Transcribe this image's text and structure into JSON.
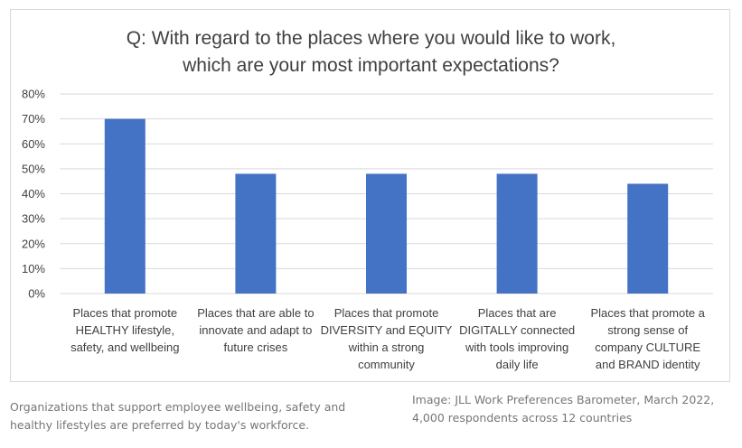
{
  "chart_data": {
    "type": "bar",
    "title_lines": [
      "Q: With regard to the places where you would like to work,",
      "which are your most important expectations?"
    ],
    "categories": [
      [
        "Places that promote",
        "HEALTHY lifestyle,",
        "safety, and wellbeing"
      ],
      [
        "Places that are able to",
        "innovate and adapt to",
        "future crises"
      ],
      [
        "Places that promote",
        "DIVERSITY and EQUITY",
        "within a strong",
        "community"
      ],
      [
        "Places that are",
        "DIGITALLY connected",
        "with tools improving",
        "daily life"
      ],
      [
        "Places that promote a",
        "strong sense of",
        "company CULTURE",
        "and BRAND identity"
      ]
    ],
    "values": [
      70,
      48,
      48,
      48,
      44
    ],
    "ylim": [
      0,
      80
    ],
    "yticks": [
      "0%",
      "10%",
      "20%",
      "30%",
      "40%",
      "50%",
      "60%",
      "70%",
      "80%"
    ],
    "grid": true,
    "bar_color": "#4472c4",
    "grid_color": "#d9d9d9"
  },
  "captions": {
    "left": [
      "Organizations that support employee wellbeing, safety and",
      "healthy lifestyles are preferred by today's workforce."
    ],
    "right": [
      "Image: JLL Work Preferences Barometer, March 2022,",
      "4,000 respondents across 12 countries"
    ]
  }
}
